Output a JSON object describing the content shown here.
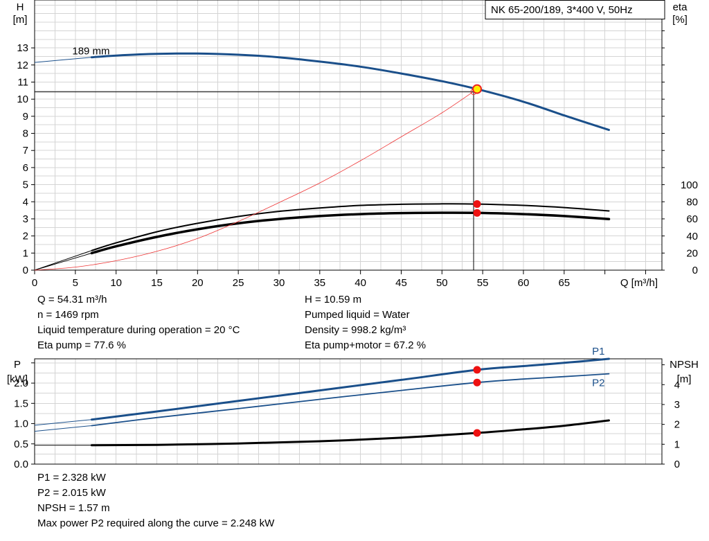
{
  "chart_data": [
    {
      "type": "line",
      "title": "NK 65-200/189, 3*400 V, 50Hz",
      "xlabel": "Q [m³/h]",
      "ylabel_left": [
        "H",
        "[m]"
      ],
      "ylabel_right": [
        "eta",
        "[%]"
      ],
      "x_ticks": [
        0,
        5,
        10,
        15,
        20,
        25,
        30,
        35,
        40,
        45,
        50,
        55,
        60,
        65
      ],
      "y_left_ticks": [
        0,
        1,
        2,
        3,
        4,
        5,
        6,
        7,
        8,
        9,
        10,
        11,
        12,
        13
      ],
      "y_right_ticks": [
        0,
        20,
        40,
        60,
        80,
        100
      ],
      "xlim": [
        0,
        77
      ],
      "ylim_left": [
        0,
        15.8
      ],
      "ylim_right": [
        0,
        100
      ],
      "grid": true,
      "annotations": [
        {
          "text": "189 mm",
          "x": 7,
          "y": 12.45
        }
      ],
      "duty_point": {
        "x": 54.31,
        "y": 10.59,
        "eta_pump": 77.6,
        "eta_total": 67.2
      },
      "series": [
        {
          "name": "",
          "axis": "left",
          "color": "#1a4f8a",
          "width": 3,
          "extrapolated": [
            [
              0,
              12.15
            ],
            [
              7,
              12.45
            ]
          ],
          "x": [
            7,
            10,
            15,
            20,
            25,
            30,
            35,
            40,
            45,
            50,
            54.31,
            60,
            65,
            70.5
          ],
          "y": [
            12.45,
            12.55,
            12.65,
            12.67,
            12.6,
            12.45,
            12.2,
            11.9,
            11.5,
            11.05,
            10.59,
            9.85,
            9.05,
            8.2
          ]
        },
        {
          "name": "",
          "axis": "right",
          "color": "#000000",
          "width": 2,
          "extrapolated": [
            [
              0,
              0
            ],
            [
              7,
              23
            ]
          ],
          "x": [
            7,
            10,
            15,
            20,
            25,
            30,
            35,
            40,
            45,
            50,
            54.31,
            60,
            65,
            70.5
          ],
          "y": [
            23,
            32,
            45,
            55,
            63,
            69,
            73,
            76,
            77.3,
            77.8,
            77.6,
            76,
            73.5,
            69.5
          ]
        },
        {
          "name": "",
          "axis": "right",
          "color": "#000000",
          "width": 3.5,
          "extrapolated": [
            [
              0,
              0
            ],
            [
              7,
              20
            ]
          ],
          "x": [
            7,
            10,
            15,
            20,
            25,
            30,
            35,
            40,
            45,
            50,
            54.31,
            60,
            65,
            70.5
          ],
          "y": [
            20,
            28,
            39,
            48,
            55,
            60,
            63.5,
            65.8,
            67,
            67.4,
            67.2,
            65.8,
            63.5,
            60
          ]
        },
        {
          "name": "",
          "axis": "left",
          "color": "#ee3333",
          "width": 0.8,
          "x": [
            0,
            5,
            10,
            15,
            20,
            25,
            30,
            35,
            40,
            45,
            50,
            54.31
          ],
          "y": [
            0,
            0.18,
            0.55,
            1.1,
            1.85,
            2.85,
            3.95,
            5.1,
            6.4,
            7.8,
            9.2,
            10.59
          ]
        }
      ]
    },
    {
      "type": "line",
      "ylabel_left": [
        "P",
        "[kW]"
      ],
      "ylabel_right": [
        "NPSH",
        "[m]"
      ],
      "xlim": [
        0,
        77
      ],
      "ylim_left": [
        0,
        2.6
      ],
      "ylim_right": [
        0,
        5.3
      ],
      "y_left_ticks": [
        0.0,
        0.5,
        1.0,
        1.5,
        2.0
      ],
      "y_left_tick_labels": [
        "0.0",
        "0.5",
        "1.0",
        "1.5",
        "2.0"
      ],
      "y_right_ticks": [
        0,
        1,
        2,
        3,
        4
      ],
      "grid": true,
      "series": [
        {
          "name": "P1",
          "axis": "left",
          "color": "#1a4f8a",
          "width": 3,
          "extrapolated": [
            [
              0,
              0.96
            ],
            [
              7,
              1.1
            ]
          ],
          "x": [
            7,
            15,
            25,
            35,
            45,
            54.31,
            60,
            65,
            70.5
          ],
          "y": [
            1.1,
            1.3,
            1.56,
            1.82,
            2.08,
            2.328,
            2.42,
            2.5,
            2.6
          ]
        },
        {
          "name": "P2",
          "axis": "left",
          "color": "#1a4f8a",
          "width": 1.8,
          "extrapolated": [
            [
              0,
              0.81
            ],
            [
              7,
              0.95
            ]
          ],
          "x": [
            7,
            15,
            25,
            35,
            45,
            54.31,
            60,
            65,
            70.5
          ],
          "y": [
            0.95,
            1.15,
            1.37,
            1.6,
            1.82,
            2.015,
            2.1,
            2.16,
            2.23
          ]
        },
        {
          "name": "",
          "axis": "right",
          "color": "#000000",
          "width": 3,
          "extrapolated": [
            [
              0,
              0.95
            ],
            [
              7,
              0.95
            ]
          ],
          "x": [
            7,
            15,
            25,
            35,
            45,
            54.31,
            60,
            65,
            70.5
          ],
          "y": [
            0.95,
            0.97,
            1.04,
            1.15,
            1.33,
            1.57,
            1.75,
            1.93,
            2.2
          ]
        }
      ]
    }
  ],
  "info_top_left": [
    "Q = 54.31 m³/h",
    "n = 1469 rpm",
    "Liquid temperature during operation = 20 °C",
    "Eta pump = 77.6 %"
  ],
  "info_top_right": [
    "H = 10.59 m",
    "Pumped liquid = Water",
    "Density = 998.2 kg/m³",
    "Eta pump+motor = 67.2 %"
  ],
  "info_bottom": [
    "P1 = 2.328 kW",
    "P2 = 2.015 kW",
    "NPSH = 1.57 m",
    "Max power P2 required along the curve = 2.248 kW"
  ]
}
